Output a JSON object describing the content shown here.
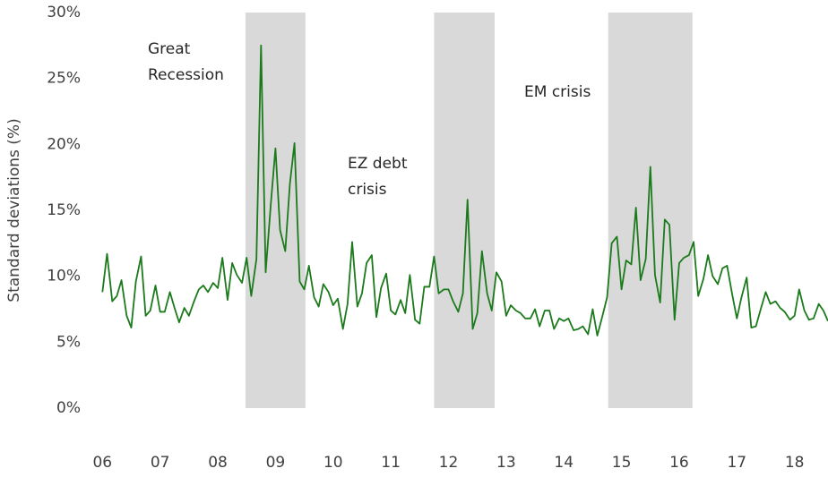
{
  "chart_data": {
    "type": "line",
    "y_label": "Standard deviations (%)",
    "x": [
      6,
      6.08,
      6.17,
      6.25,
      6.33,
      6.42,
      6.5,
      6.58,
      6.67,
      6.75,
      6.83,
      6.92,
      7,
      7.08,
      7.17,
      7.25,
      7.33,
      7.42,
      7.5,
      7.58,
      7.67,
      7.75,
      7.83,
      7.92,
      8,
      8.08,
      8.17,
      8.25,
      8.33,
      8.42,
      8.5,
      8.58,
      8.67,
      8.75,
      8.83,
      8.92,
      9,
      9.08,
      9.17,
      9.25,
      9.33,
      9.42,
      9.5,
      9.58,
      9.67,
      9.75,
      9.83,
      9.92,
      10,
      10.08,
      10.17,
      10.25,
      10.33,
      10.42,
      10.5,
      10.58,
      10.67,
      10.75,
      10.83,
      10.92,
      11,
      11.08,
      11.17,
      11.25,
      11.33,
      11.42,
      11.5,
      11.58,
      11.67,
      11.75,
      11.83,
      11.92,
      12,
      12.08,
      12.17,
      12.25,
      12.33,
      12.42,
      12.5,
      12.58,
      12.67,
      12.75,
      12.83,
      12.92,
      13,
      13.08,
      13.17,
      13.25,
      13.33,
      13.42,
      13.5,
      13.58,
      13.67,
      13.75,
      13.83,
      13.92,
      14,
      14.08,
      14.17,
      14.25,
      14.33,
      14.42,
      14.5,
      14.58,
      14.67,
      14.75,
      14.83,
      14.92,
      15,
      15.08,
      15.17,
      15.25,
      15.33,
      15.42,
      15.5,
      15.58,
      15.67,
      15.75,
      15.83,
      15.92,
      16,
      16.08,
      16.17,
      16.25,
      16.33,
      16.42,
      16.5,
      16.58,
      16.67,
      16.75,
      16.83,
      16.92,
      17,
      17.08,
      17.17,
      17.25,
      17.33,
      17.42,
      17.5,
      17.58,
      17.67,
      17.75,
      17.83,
      17.92,
      18,
      18.08,
      18.17,
      18.25,
      18.33,
      18.42,
      18.5,
      18.58
    ],
    "series": [
      {
        "color": "#1b7a1b",
        "values": [
          8.8,
          11.7,
          8.1,
          8.5,
          9.7,
          7.0,
          6.1,
          9.6,
          11.5,
          7.0,
          7.4,
          9.3,
          7.3,
          7.3,
          8.8,
          7.6,
          6.5,
          7.6,
          7.0,
          8.0,
          9.0,
          9.3,
          8.8,
          9.5,
          9.1,
          11.4,
          8.2,
          11.0,
          10.1,
          9.5,
          11.4,
          8.5,
          11.3,
          27.5,
          10.3,
          15.5,
          19.7,
          13.5,
          11.9,
          17.0,
          20.1,
          9.6,
          9.0,
          10.8,
          8.4,
          7.7,
          9.4,
          8.8,
          7.8,
          8.3,
          6.0,
          7.9,
          12.6,
          7.7,
          8.7,
          11.0,
          11.6,
          6.9,
          9.1,
          10.2,
          7.4,
          7.1,
          8.2,
          7.2,
          10.1,
          6.7,
          6.4,
          9.2,
          9.2,
          11.5,
          8.7,
          9.0,
          9.0,
          8.1,
          7.3,
          8.7,
          15.8,
          6.0,
          7.2,
          11.9,
          8.7,
          7.4,
          10.3,
          9.6,
          7.0,
          7.8,
          7.4,
          7.2,
          6.8,
          6.8,
          7.5,
          6.2,
          7.4,
          7.4,
          6.0,
          6.8,
          6.6,
          6.8,
          5.9,
          6.0,
          6.2,
          5.6,
          7.5,
          5.5,
          7.0,
          8.4,
          12.5,
          13.0,
          9.0,
          11.2,
          10.9,
          15.2,
          9.7,
          11.3,
          18.3,
          10.1,
          8.0,
          14.3,
          13.9,
          6.7,
          11.0,
          11.4,
          11.6,
          12.6,
          8.5,
          9.8,
          11.6,
          10.0,
          9.4,
          10.6,
          10.8,
          8.6,
          6.8,
          8.4,
          9.9,
          6.1,
          6.2,
          7.6,
          8.8,
          7.9,
          8.1,
          7.6,
          7.3,
          6.7,
          7.0,
          9.0,
          7.4,
          6.7,
          6.8,
          7.9,
          7.4,
          6.6
        ]
      }
    ],
    "shaded_periods": [
      [
        8.48,
        9.52
      ],
      [
        11.75,
        12.8
      ],
      [
        14.77,
        16.23
      ]
    ],
    "shade_color": "#d9d9d9",
    "annotations": [
      [
        "Great",
        "Recession"
      ],
      [
        "EZ debt",
        "crisis"
      ],
      [
        "EM crisis"
      ]
    ],
    "xlim": [
      5.7,
      18.58
    ],
    "xticks": [
      {
        "value": 6,
        "label": "06"
      },
      {
        "value": 7,
        "label": "07"
      },
      {
        "value": 8,
        "label": "08"
      },
      {
        "value": 9,
        "label": "09"
      },
      10,
      11,
      12,
      13,
      14,
      15,
      16,
      17,
      18
    ],
    "ylim": [
      0,
      30
    ],
    "yticks": [
      {
        "value": 0,
        "label": "0%"
      },
      {
        "value": 5,
        "label": "5%"
      },
      {
        "value": 10,
        "label": "10%"
      },
      {
        "value": 15,
        "label": "15%"
      },
      {
        "value": 20,
        "label": "20%"
      },
      {
        "value": 25,
        "label": "25%"
      },
      {
        "value": 30,
        "label": "30%"
      }
    ],
    "grid": false
  }
}
